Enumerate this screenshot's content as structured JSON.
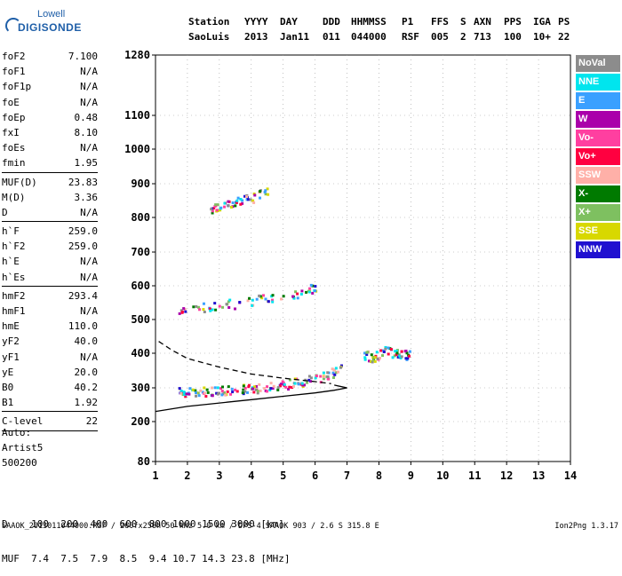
{
  "logo": {
    "line1": "Lowell",
    "line2": "DIGISONDE"
  },
  "header": {
    "labels": [
      "Station",
      "YYYY",
      "DAY",
      "DDD",
      "HHMMSS",
      "P1",
      "FFS",
      "S",
      "AXN",
      "PPS",
      "IGA",
      "PS"
    ],
    "values": [
      "SaoLuis",
      "2013",
      "Jan11",
      "011",
      "044000",
      "RSF",
      "005",
      "2",
      "713",
      "100",
      "10+",
      "22"
    ]
  },
  "params": [
    [
      {
        "k": "foF2",
        "v": "7.100"
      },
      {
        "k": "foF1",
        "v": "N/A"
      },
      {
        "k": "foF1p",
        "v": "N/A"
      },
      {
        "k": "foE",
        "v": "N/A"
      },
      {
        "k": "foEp",
        "v": "0.48"
      },
      {
        "k": "fxI",
        "v": "8.10"
      },
      {
        "k": "foEs",
        "v": "N/A"
      },
      {
        "k": "fmin",
        "v": "1.95"
      }
    ],
    [
      {
        "k": "MUF(D)",
        "v": "23.83"
      },
      {
        "k": "M(D)",
        "v": "3.36"
      },
      {
        "k": "D",
        "v": "N/A"
      }
    ],
    [
      {
        "k": "h`F",
        "v": "259.0"
      },
      {
        "k": "h`F2",
        "v": "259.0"
      },
      {
        "k": "h`E",
        "v": "N/A"
      },
      {
        "k": "h`Es",
        "v": "N/A"
      }
    ],
    [
      {
        "k": "hmF2",
        "v": "293.4"
      },
      {
        "k": "hmF1",
        "v": "N/A"
      },
      {
        "k": "hmE",
        "v": "110.0"
      },
      {
        "k": "yF2",
        "v": "40.0"
      },
      {
        "k": "yF1",
        "v": "N/A"
      },
      {
        "k": "yE",
        "v": "20.0"
      },
      {
        "k": "B0",
        "v": "40.2"
      },
      {
        "k": "B1",
        "v": "1.92"
      }
    ],
    [
      {
        "k": "C-level",
        "v": "22"
      }
    ]
  ],
  "auto": {
    "line1": "Auto:",
    "line2": "Artist5",
    "line3": "500200"
  },
  "legend": [
    {
      "name": "NoVal",
      "color": "#8c8c8c"
    },
    {
      "name": "NNE",
      "color": "#00e5ee"
    },
    {
      "name": "E",
      "color": "#3aa0ff"
    },
    {
      "name": "W",
      "color": "#aa00aa"
    },
    {
      "name": "Vo-",
      "color": "#ff3fa0"
    },
    {
      "name": "Vo+",
      "color": "#ff0040"
    },
    {
      "name": "SSW",
      "color": "#ffb0a8"
    },
    {
      "name": "X-",
      "color": "#007a00"
    },
    {
      "name": "X+",
      "color": "#7ec060"
    },
    {
      "name": "SSE",
      "color": "#d8d800"
    },
    {
      "name": "NNW",
      "color": "#2010d0"
    }
  ],
  "chart_data": {
    "type": "scatter",
    "xlabel": "",
    "ylabel": "",
    "x_ticks": [
      1,
      2,
      3,
      4,
      5,
      6,
      7,
      8,
      9,
      10,
      11,
      12,
      13,
      14
    ],
    "y_ticks": [
      80,
      200,
      300,
      400,
      500,
      600,
      700,
      800,
      900,
      1000,
      1100,
      1280
    ],
    "xlim": [
      1,
      14
    ],
    "y_scale": "nonlinear (compressed at high range)",
    "grid": true,
    "traces": [
      {
        "name": "F-trace o",
        "x": [
          1.7,
          2.0,
          2.5,
          3.0,
          3.5,
          4.0,
          4.5,
          5.0,
          5.5,
          6.0,
          6.5,
          6.8
        ],
        "y": [
          290,
          290,
          292,
          295,
          297,
          300,
          305,
          310,
          320,
          330,
          345,
          360
        ]
      },
      {
        "name": "F-trace 2nd",
        "x": [
          1.7,
          2.5,
          3.5,
          4.5,
          5.5,
          6.0
        ],
        "y": [
          530,
          540,
          550,
          565,
          580,
          600
        ]
      },
      {
        "name": "F-trace 3rd",
        "x": [
          2.7,
          3.0,
          3.5,
          4.0,
          4.5
        ],
        "y": [
          820,
          840,
          850,
          860,
          880
        ]
      },
      {
        "name": "blob 8-9",
        "x": [
          7.5,
          7.8,
          8.2,
          8.6,
          9.0
        ],
        "y": [
          400,
          390,
          410,
          400,
          395
        ]
      }
    ],
    "model_curves": [
      {
        "name": "profile solid",
        "x": [
          1.0,
          2.0,
          3.0,
          4.0,
          5.0,
          6.0,
          6.6,
          7.0,
          6.6
        ],
        "y": [
          230,
          245,
          255,
          265,
          275,
          285,
          293,
          300,
          308
        ]
      },
      {
        "name": "profile dashed",
        "x": [
          1.1,
          1.5,
          2.0,
          3.0,
          4.0,
          5.0,
          6.0,
          6.5
        ],
        "y": [
          435,
          410,
          385,
          360,
          340,
          328,
          318,
          312
        ]
      }
    ]
  },
  "dmuf": {
    "d_label": "D",
    "d_values": "100  200  400  600  800 1000 1500 3000 [km]",
    "muf_label": "MUF",
    "muf_values": "7.4  7.5  7.9  8.5  9.4 10.7 14.3 23.8 [MHz]"
  },
  "footer": {
    "left": "SAAOK_2013011044000.RSF / 260fx256h 50 kHz 5.0 km / DPS-4 SAAOK 903 / 2.6 S 315.8 E",
    "right": "Ion2Png 1.3.17"
  }
}
